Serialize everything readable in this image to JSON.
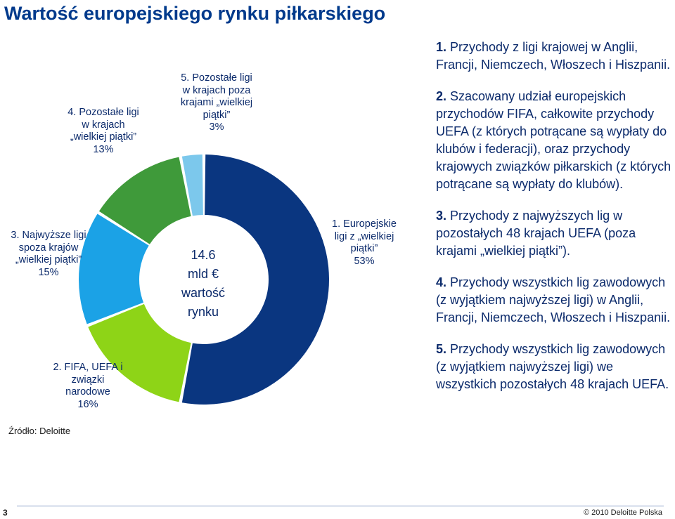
{
  "title": "Wartość europejskiego rynku piłkarskiego",
  "chart_data": {
    "type": "pie",
    "center_label": [
      "14.6",
      "mld €",
      "wartość",
      "rynku"
    ],
    "slices": [
      {
        "label_lines": [
          "1. Europejskie",
          "ligi z „wielkiej",
          "piątki”"
        ],
        "value": 53,
        "value_label": "53%",
        "color": "#0a3680"
      },
      {
        "label_lines": [
          "2. FIFA, UEFA i",
          "związki",
          "narodowe"
        ],
        "value": 16,
        "value_label": "16%",
        "color": "#8ed417"
      },
      {
        "label_lines": [
          "3. Najwyższe ligi",
          "spoza krajów",
          "„wielkiej piątki”"
        ],
        "value": 15,
        "value_label": "15%",
        "color": "#1ba2e6"
      },
      {
        "label_lines": [
          "4. Pozostałe ligi",
          "w krajach",
          "„wielkiej piątki”"
        ],
        "value": 13,
        "value_label": "13%",
        "color": "#3f9a3a"
      },
      {
        "label_lines": [
          "5. Pozostałe ligi",
          "w krajach poza",
          "krajami „wielkiej",
          "piątki”"
        ],
        "value": 3,
        "value_label": "3%",
        "color": "#7cc8ec"
      }
    ]
  },
  "source": "Źródło: Deloitte",
  "notes": [
    {
      "num": "1.",
      "text": "Przychody z ligi krajowej w Anglii, Francji, Niemczech, Włoszech i Hiszpanii."
    },
    {
      "num": "2.",
      "text": "Szacowany udział europejskich przychodów FIFA, całkowite przychody UEFA (z których potrącane są wypłaty do klubów i federacji), oraz przychody krajowych związków piłkarskich (z których potrącane są wypłaty do klubów)."
    },
    {
      "num": "3.",
      "text": "Przychody z najwyższych lig w pozostałych 48 krajach UEFA (poza krajami „wielkiej piątki”)."
    },
    {
      "num": "4.",
      "text": "Przychody wszystkich lig zawodowych (z wyjątkiem najwyższej ligi) w Anglii, Francji, Niemczech, Włoszech i Hiszpanii."
    },
    {
      "num": "5.",
      "text": "Przychody wszystkich lig zawodowych (z wyjątkiem najwyższej ligi) we wszystkich pozostałych 48 krajach UEFA."
    }
  ],
  "footer": {
    "page_number": "3",
    "copyright": "© 2010 Deloitte Polska"
  }
}
